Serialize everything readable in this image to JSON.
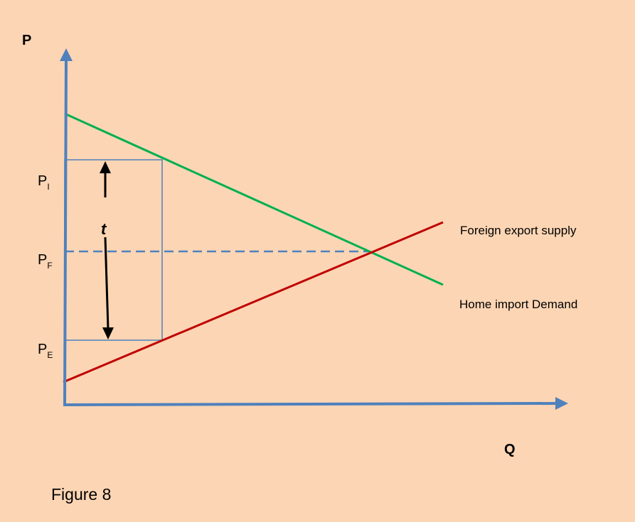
{
  "axes": {
    "y_label": "P",
    "x_label": "Q"
  },
  "price_labels": {
    "p_i": {
      "main": "P",
      "sub": "I"
    },
    "p_f": {
      "main": "P",
      "sub": "F"
    },
    "p_e": {
      "main": "P",
      "sub": "E"
    }
  },
  "curves": {
    "supply_label": "Foreign export supply",
    "demand_label": "Home import Demand"
  },
  "tariff_label": "t",
  "caption": "Figure 8",
  "colors": {
    "background": "#fcd5b4",
    "axis": "#4f81bd",
    "demand": "#00b050",
    "supply": "#c00000",
    "arrow": "#000000"
  }
}
